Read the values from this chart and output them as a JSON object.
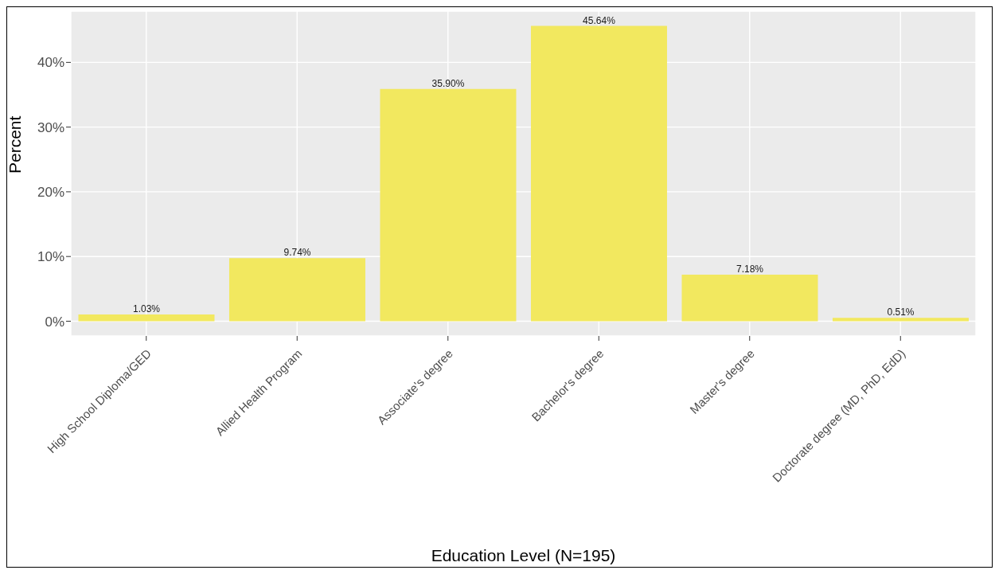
{
  "chart_data": {
    "type": "bar",
    "xlabel": "Education Level (N=195)",
    "ylabel": "Percent",
    "categories": [
      "High School Diploma/GED",
      "Allied Health Program",
      "Associate's degree",
      "Bachelor's degree",
      "Master's degree",
      "Doctorate degree (MD, PhD, EdD)"
    ],
    "values": [
      1.03,
      9.74,
      35.9,
      45.64,
      7.18,
      0.51
    ],
    "value_labels": [
      "1.03%",
      "9.74%",
      "35.90%",
      "45.64%",
      "7.18%",
      "0.51%"
    ],
    "color": "#f2e85f",
    "ylim": [
      -2.28,
      47.92
    ],
    "yticks": [
      {
        "value": 0,
        "label": "0%"
      },
      {
        "value": 10,
        "label": "10%"
      },
      {
        "value": 20,
        "label": "20%"
      },
      {
        "value": 30,
        "label": "30%"
      },
      {
        "value": 40,
        "label": "40%"
      }
    ],
    "grid": true
  }
}
